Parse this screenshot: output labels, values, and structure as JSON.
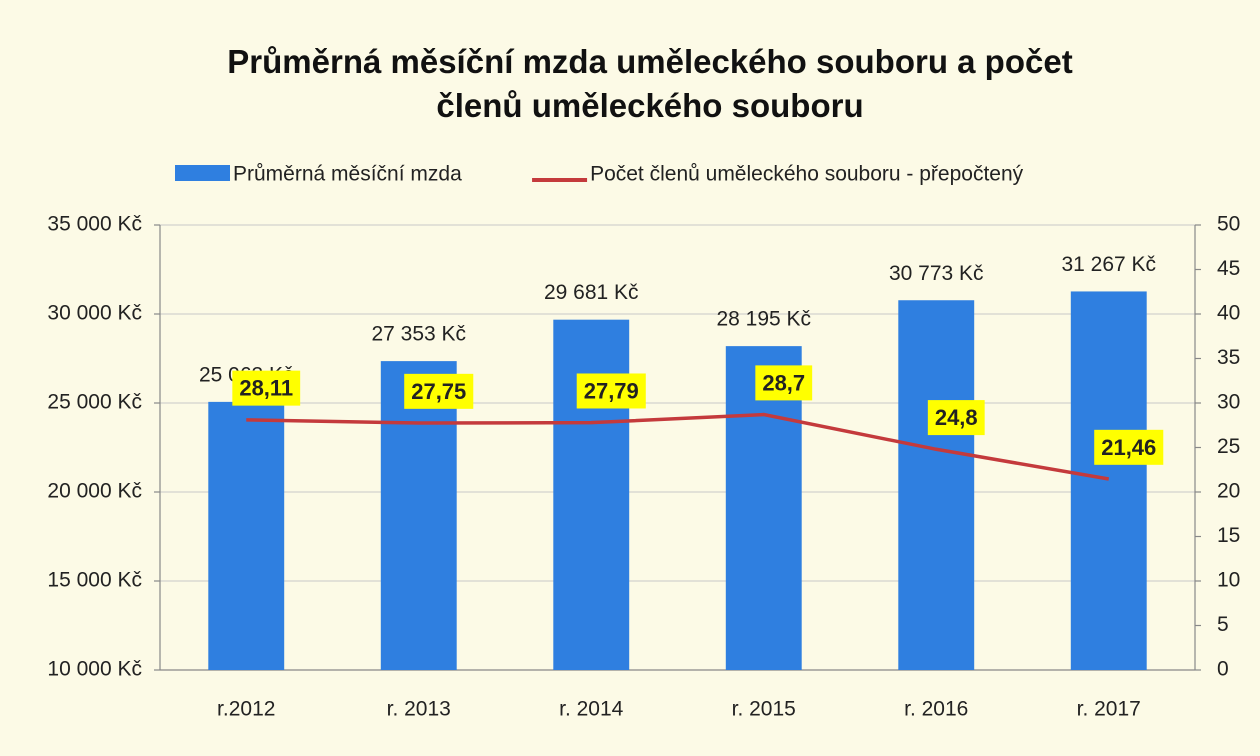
{
  "chart_data": {
    "type": "bar",
    "title": "Průměrná měsíční mzda uměleckého souboru a počet členů uměleckého souboru",
    "categories": [
      "r.2012",
      "r. 2013",
      "r. 2014",
      "r. 2015",
      "r. 2016",
      "r. 2017"
    ],
    "series": [
      {
        "name": "Průměrná měsíční mzda",
        "type": "bar",
        "color": "#2f7fe0",
        "values": [
          25063,
          27353,
          29681,
          28195,
          30773,
          31267
        ],
        "value_labels": [
          "25 063 Kč",
          "27 353 Kč",
          "29 681 Kč",
          "28 195 Kč",
          "30 773 Kč",
          "31 267 Kč"
        ]
      },
      {
        "name": "Počet členů uměleckého souboru - přepočtený",
        "type": "line",
        "axis": "y2",
        "color": "#c43a3c",
        "values": [
          28.11,
          27.75,
          27.79,
          28.7,
          24.8,
          21.46
        ],
        "value_labels": [
          "28,11",
          "27,75",
          "27,79",
          "28,7",
          "24,8",
          "21,46"
        ]
      }
    ],
    "ylim": [
      10000,
      35000
    ],
    "yticks": [
      {
        "value": 10000,
        "label": "10 000 Kč"
      },
      {
        "value": 15000,
        "label": "15 000 Kč"
      },
      {
        "value": 20000,
        "label": "20 000 Kč"
      },
      {
        "value": 25000,
        "label": "25 000 Kč"
      },
      {
        "value": 30000,
        "label": "30 000 Kč"
      },
      {
        "value": 35000,
        "label": "35 000 Kč"
      }
    ],
    "y2lim": [
      0,
      50
    ],
    "y2ticks": [
      0,
      5,
      10,
      15,
      20,
      25,
      30,
      35,
      40,
      45,
      50
    ],
    "grid": true,
    "legend": "top"
  }
}
